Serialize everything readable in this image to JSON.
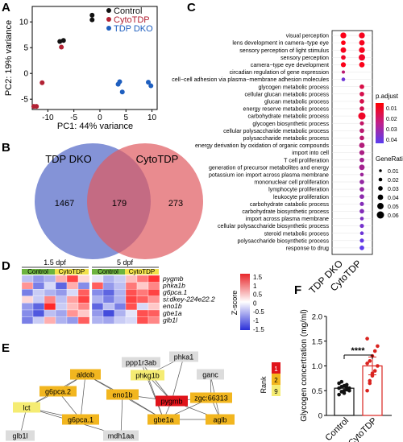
{
  "panels": {
    "A": "A",
    "B": "B",
    "C": "C",
    "D": "D",
    "E": "E",
    "F": "F"
  },
  "colors": {
    "control": "#111111",
    "cytotdp": "#b22234",
    "tdpdko": "#1f5fbf"
  },
  "chart_data": [
    {
      "type": "scatter",
      "legend": [
        {
          "name": "Control",
          "color": "#111111"
        },
        {
          "name": "CytoTDP",
          "color": "#b22234"
        },
        {
          "name": "TDP DKO",
          "color": "#1f5fbf"
        }
      ],
      "xlabel": "PC1: 44% variance",
      "ylabel": "PC2: 19% variance",
      "xlim": [
        -13,
        11
      ],
      "ylim": [
        -7,
        13
      ],
      "xticks": [
        "-10",
        "-5",
        "0",
        "5",
        "10"
      ],
      "yticks": [
        "-5",
        "0",
        "5",
        "10"
      ],
      "series": [
        {
          "name": "Control",
          "values": [
            [
              -7.7,
              6.2
            ],
            [
              -7.0,
              6.4
            ],
            [
              -1.5,
              11.3
            ],
            [
              -1.5,
              10.4
            ]
          ]
        },
        {
          "name": "CytoTDP",
          "values": [
            [
              -7.4,
              5.1
            ],
            [
              -11.1,
              -1.8
            ],
            [
              -12.2,
              -6.4
            ],
            [
              -12.7,
              -6.4
            ]
          ]
        },
        {
          "name": "TDP DKO",
          "values": [
            [
              3.5,
              -2.1
            ],
            [
              4.3,
              -3.6
            ],
            [
              9.8,
              -2.4
            ],
            [
              9.3,
              -1.7
            ],
            [
              3.8,
              -1.6
            ]
          ]
        }
      ]
    },
    {
      "type": "venn",
      "labels": [
        "TDP DKO",
        "CytoTDP"
      ],
      "values": {
        "left": "1467",
        "both": "179",
        "right": "273"
      }
    },
    {
      "type": "dot",
      "columns": [
        "TDP DKO",
        "CytoTDP"
      ],
      "terms": [
        "visual perception",
        "lens development in camera−type eye",
        "sensory perception of light stimulus",
        "sensory perception",
        "camera−type eye development",
        "circadian regulation of gene expression",
        "cell−cell adhesion via plasma−membrane adhesion molecules",
        "glycogen metabolic process",
        "cellular glucan metabolic process",
        "glucan metabolic process",
        "energy reserve metabolic process",
        "carbohydrate metabolic process",
        "glycogen biosynthetic process",
        "cellular polysaccharide metabolic process",
        "polysaccharide metabolic process",
        "energy derivation by oxidation of organic compounds",
        "import into cell",
        "T cell proliferation",
        "generation of precursor metabolites and energy",
        "potassium ion import across plasma membrane",
        "mononuclear cell proliferation",
        "lymphocyte proliferation",
        "leukocyte proliferation",
        "carbohydrate catabolic process",
        "carbohydrate biosynthetic process",
        "import across plasma membrane",
        "cellular polysaccharide biosynthetic process",
        "steroid metabolic process",
        "polysaccharide biosynthetic process",
        "response to drug"
      ],
      "dko": [
        [
          0.045,
          0.003
        ],
        [
          0.03,
          0.002
        ],
        [
          0.04,
          0.004
        ],
        [
          0.03,
          0.006
        ],
        [
          0.035,
          0.003
        ],
        [
          0.015,
          0.02
        ],
        [
          0.02,
          0.04
        ]
      ],
      "cyto": [
        [
          0.045,
          0.004
        ],
        [
          0.04,
          0.004
        ],
        [
          0.045,
          0.004
        ],
        [
          0.05,
          0.006
        ],
        [
          0.04,
          0.003
        ],
        null,
        null,
        [
          0.03,
          0.012
        ],
        [
          0.03,
          0.013
        ],
        [
          0.03,
          0.013
        ],
        [
          0.03,
          0.014
        ],
        [
          0.06,
          0.006
        ],
        [
          0.025,
          0.018
        ],
        [
          0.03,
          0.02
        ],
        [
          0.03,
          0.02
        ],
        [
          0.04,
          0.022
        ],
        [
          0.035,
          0.024
        ],
        [
          0.03,
          0.026
        ],
        [
          0.04,
          0.026
        ],
        [
          0.02,
          0.028
        ],
        [
          0.03,
          0.03
        ],
        [
          0.03,
          0.03
        ],
        [
          0.03,
          0.032
        ],
        [
          0.025,
          0.034
        ],
        [
          0.03,
          0.034
        ],
        [
          0.02,
          0.036
        ],
        [
          0.025,
          0.038
        ],
        [
          0.02,
          0.04
        ],
        [
          0.025,
          0.042
        ],
        [
          0.03,
          0.044
        ]
      ],
      "legend_padj_title": "p.adjust",
      "legend_padj_ticks": [
        "0.01",
        "0.02",
        "0.03",
        "0.04"
      ],
      "legend_ratio_title": "GeneRatio",
      "legend_ratio_ticks": [
        "0.01",
        "0.02",
        "0.03",
        "0.04",
        "0.05",
        "0.06"
      ]
    },
    {
      "type": "heatmap",
      "timepoints": [
        "1.5 dpf",
        "5 dpf"
      ],
      "groups": [
        "Control",
        "CytoTDP"
      ],
      "genes": [
        "pygmb",
        "phka1b",
        "g6pca.1",
        "si:dkey-224e22.2",
        "eno1b",
        "gbe1a",
        "glb1l"
      ],
      "values": [
        [
          -0.5,
          -0.8,
          -0.6,
          0.6,
          1.4,
          0.3,
          -0.2,
          -0.6,
          -0.4,
          0.5,
          1.0,
          1.5
        ],
        [
          0.8,
          -1.0,
          -0.3,
          -1.2,
          0.6,
          -0.9,
          1.2,
          -0.8,
          -0.5,
          1.0,
          0.4,
          0.9
        ],
        [
          -1.0,
          -0.4,
          -0.6,
          -0.8,
          -0.3,
          1.2,
          -0.9,
          -1.2,
          -0.6,
          1.3,
          1.0,
          1.4
        ],
        [
          0.3,
          -0.4,
          0.9,
          -0.5,
          0.7,
          1.4,
          -0.6,
          -1.0,
          -0.6,
          1.4,
          1.2,
          0.8
        ],
        [
          -0.8,
          -1.2,
          1.6,
          -0.4,
          0.5,
          0.9,
          -1.2,
          -0.5,
          -1.0,
          1.3,
          -0.3,
          0.4
        ],
        [
          -0.9,
          -1.3,
          -0.5,
          -0.7,
          0.8,
          0.4,
          -0.8,
          -1.4,
          -0.6,
          -0.2,
          1.3,
          1.2
        ],
        [
          -1.0,
          -0.4,
          0.6,
          -0.6,
          -0.8,
          1.2,
          -0.6,
          -0.7,
          -0.4,
          -0.3,
          1.3,
          0.9
        ]
      ],
      "scale_label": "Z-score",
      "scale_ticks": [
        "1.5",
        "1",
        "0.5",
        "0",
        "-0.5",
        "-1",
        "-1.5"
      ]
    },
    {
      "type": "network",
      "nodes": [
        {
          "id": "ppp1r3ab",
          "rank": null
        },
        {
          "id": "phka1",
          "rank": null
        },
        {
          "id": "aldob",
          "rank": 2
        },
        {
          "id": "phkg1b",
          "rank": 9
        },
        {
          "id": "ganc",
          "rank": null
        },
        {
          "id": "g6pca.2",
          "rank": 2
        },
        {
          "id": "eno1b",
          "rank": 2
        },
        {
          "id": "pygmb",
          "rank": 1
        },
        {
          "id": "zgc:66313",
          "rank": 2
        },
        {
          "id": "lct",
          "rank": 9
        },
        {
          "id": "g6pca.1",
          "rank": 2
        },
        {
          "id": "gbe1a",
          "rank": 2
        },
        {
          "id": "aglb",
          "rank": 2
        },
        {
          "id": "glb1l",
          "rank": null
        },
        {
          "id": "mdh1aa",
          "rank": null
        }
      ],
      "rank_title": "Rank",
      "rank_values": [
        "1",
        "2",
        "9"
      ]
    },
    {
      "type": "bar",
      "categories": [
        "Control",
        "CytoTDP"
      ],
      "values": [
        0.55,
        1.0
      ],
      "errors": [
        0.05,
        0.18
      ],
      "ylabel": "Glycogen concertration  (mg/ml)",
      "ylim": [
        0,
        2.0
      ],
      "yticks": [
        "0",
        "0.5",
        "1.0",
        "1.5",
        "2.0"
      ],
      "significance": "****",
      "points": [
        [
          0.42,
          0.48,
          0.5,
          0.52,
          0.55,
          0.55,
          0.58,
          0.6,
          0.62,
          0.5,
          0.65,
          0.68,
          0.45,
          0.56
        ],
        [
          0.5,
          0.7,
          0.8,
          0.9,
          1.0,
          1.05,
          1.1,
          1.2,
          1.3,
          1.4,
          1.55,
          0.65,
          0.85
        ]
      ]
    }
  ]
}
